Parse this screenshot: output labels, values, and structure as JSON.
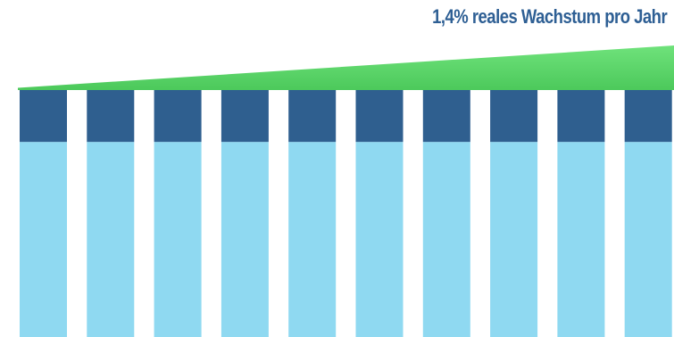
{
  "chart_data": {
    "type": "bar",
    "title": "1,4% reales Wachstum pro Jahr",
    "categories": [
      "",
      "",
      "",
      "",
      "",
      "",
      "",
      "",
      "",
      ""
    ],
    "bar_count": 10,
    "stacked": true,
    "series": [
      {
        "values": [
          0.79,
          0.79,
          0.79,
          0.79,
          0.79,
          0.79,
          0.79,
          0.79,
          0.79,
          0.79
        ]
      },
      {
        "values": [
          0.21,
          0.21,
          0.21,
          0.21,
          0.21,
          0.21,
          0.21,
          0.21,
          0.21,
          0.21
        ]
      }
    ],
    "growth_band": {
      "rate_label": "1,4%",
      "relative_height_start": 0.01,
      "relative_height_end": 0.2
    },
    "axes_visible": false,
    "grid": false,
    "legend": "none"
  },
  "colors": {
    "base_segment": "#8fd9f1",
    "top_segment": "#2f5f8f",
    "growth_band": "#5ed66b",
    "title_text": "#2e5f94",
    "background": "#ffffff"
  }
}
